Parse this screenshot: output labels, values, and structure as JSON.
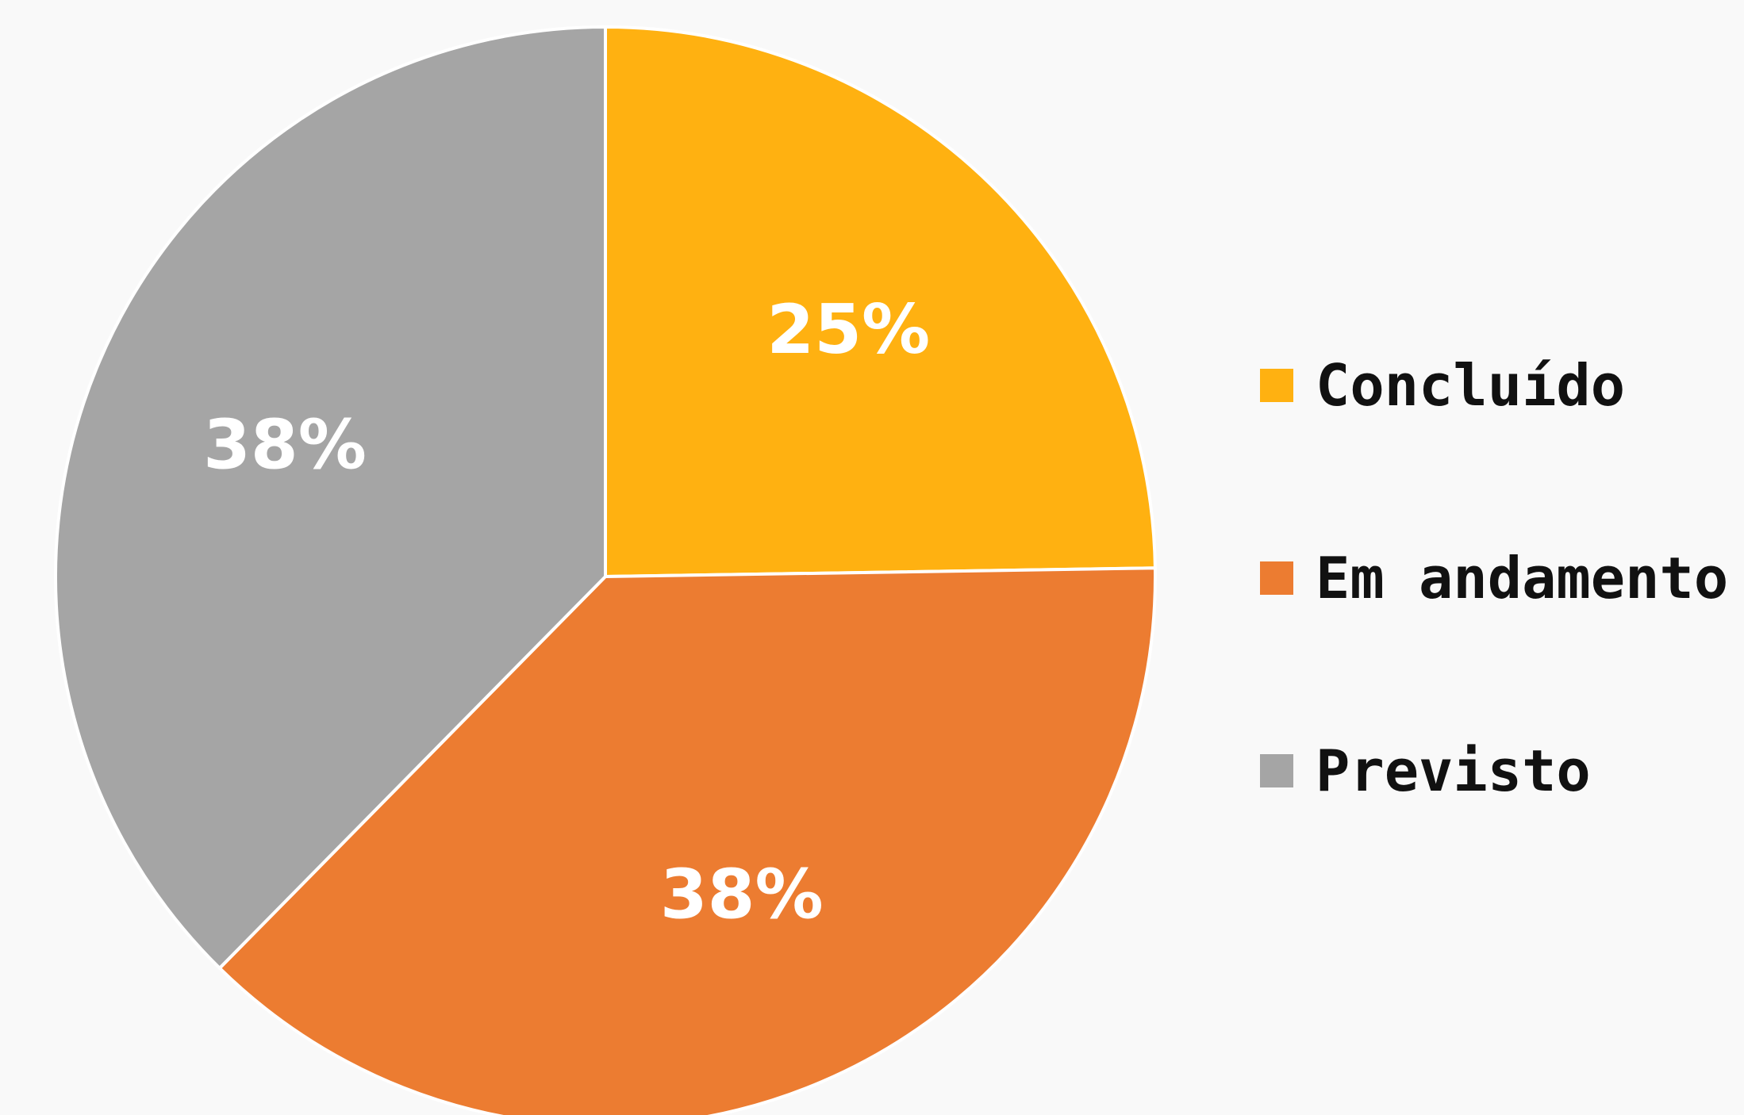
{
  "chart_data": {
    "type": "pie",
    "categories": [
      "Concluído",
      "Em andamento",
      "Previsto"
    ],
    "values": [
      25,
      38,
      38
    ],
    "labels": [
      "25%",
      "38%",
      "38%"
    ],
    "colors": [
      "#ffb111",
      "#ec7c31",
      "#a5a5a5"
    ],
    "start_angle_deg": 0,
    "direction": "clockwise",
    "legend_position": "right",
    "background": "#f9f9f9",
    "slice_border_color": "#ffffff"
  }
}
